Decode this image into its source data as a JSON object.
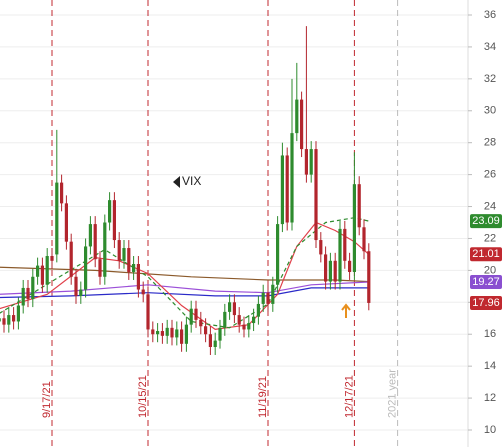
{
  "chart_data": {
    "type": "candlestick",
    "label": "VIX",
    "categories": [
      null,
      null,
      null,
      null,
      null,
      null,
      null,
      null,
      null,
      null,
      null,
      "9/17/21",
      null,
      null,
      null,
      null,
      null,
      null,
      null,
      null,
      null,
      null,
      null,
      null,
      null,
      null,
      null,
      null,
      null,
      null,
      null,
      "10/15/21",
      null,
      null,
      null,
      null,
      null,
      null,
      null,
      null,
      null,
      null,
      null,
      null,
      null,
      null,
      null,
      null,
      null,
      null,
      null,
      null,
      null,
      null,
      null,
      null,
      "11/19/21",
      null,
      null,
      null,
      null,
      null,
      null,
      null,
      null,
      null,
      null,
      null,
      null,
      null,
      null,
      null,
      null,
      null,
      "12/17/21",
      null,
      null,
      null,
      null,
      null,
      null,
      null,
      null,
      "2021 year"
    ],
    "open": [
      16.8,
      17.0,
      16.6,
      17.2,
      16.8,
      17.8,
      18.9,
      18.2,
      19.6,
      20.3,
      19.1,
      20.9,
      21.0,
      25.5,
      24.2,
      21.8,
      19.6,
      18.4,
      18.8,
      21.5,
      22.9,
      20.7,
      19.6,
      23.0,
      24.4,
      21.9,
      20.6,
      21.4,
      19.9,
      20.4,
      18.8,
      18.5,
      16.3,
      16.0,
      16.2,
      15.9,
      16.4,
      15.8,
      16.3,
      15.4,
      16.6,
      17.6,
      16.9,
      16.5,
      16.0,
      15.2,
      15.6,
      16.4,
      17.4,
      18.0,
      17.2,
      16.6,
      16.3,
      16.7,
      17.1,
      17.9,
      18.6,
      17.9,
      19.1,
      22.9,
      27.2,
      23.0,
      28.6,
      30.7,
      27.6,
      26.0,
      27.6,
      21.9,
      21.0,
      19.3,
      20.6,
      19.3,
      22.6,
      20.6,
      19.9,
      25.4,
      22.7,
      21.2,
      null,
      null,
      null,
      null,
      null,
      null
    ],
    "high": [
      17.5,
      17.5,
      17.7,
      17.7,
      18.3,
      19.4,
      19.4,
      20.1,
      20.8,
      20.8,
      21.4,
      21.4,
      28.8,
      26.0,
      24.7,
      22.3,
      20.1,
      19.3,
      22.0,
      23.4,
      23.4,
      21.2,
      23.5,
      24.9,
      24.9,
      22.4,
      21.9,
      21.9,
      20.9,
      20.9,
      19.3,
      19.0,
      16.8,
      16.7,
      16.7,
      16.9,
      16.9,
      16.8,
      16.8,
      17.1,
      18.1,
      18.1,
      17.4,
      17.0,
      16.5,
      16.1,
      16.9,
      17.9,
      18.5,
      18.5,
      17.7,
      17.1,
      17.2,
      17.6,
      18.4,
      19.1,
      19.1,
      19.6,
      23.4,
      28.0,
      27.7,
      32.0,
      33.0,
      31.2,
      35.3,
      28.1,
      28.1,
      22.4,
      21.5,
      21.1,
      21.1,
      23.1,
      23.1,
      21.1,
      27.4,
      25.9,
      23.2,
      21.7,
      null,
      null,
      null,
      null,
      null,
      null
    ],
    "low": [
      16.3,
      16.1,
      16.1,
      16.3,
      16.3,
      17.3,
      17.7,
      17.7,
      19.1,
      18.6,
      18.6,
      20.1,
      20.5,
      23.7,
      21.3,
      19.1,
      17.9,
      17.9,
      18.3,
      21.0,
      20.2,
      19.1,
      19.1,
      22.5,
      21.4,
      20.1,
      20.1,
      19.4,
      19.4,
      18.3,
      18.0,
      15.8,
      15.5,
      15.5,
      15.4,
      15.4,
      15.3,
      15.3,
      14.9,
      14.9,
      16.1,
      16.4,
      16.0,
      15.5,
      14.7,
      14.7,
      15.1,
      15.9,
      16.9,
      16.7,
      16.1,
      15.8,
      15.8,
      16.2,
      16.6,
      17.4,
      17.4,
      17.4,
      18.6,
      22.4,
      22.5,
      22.5,
      28.1,
      27.1,
      25.5,
      25.5,
      21.4,
      20.5,
      18.8,
      18.8,
      18.8,
      18.8,
      20.1,
      19.4,
      19.4,
      22.2,
      20.7,
      17.5,
      null,
      null,
      null,
      null,
      null,
      null
    ],
    "close": [
      17.0,
      16.6,
      17.2,
      16.8,
      17.8,
      18.9,
      18.2,
      19.6,
      20.3,
      19.1,
      20.9,
      20.6,
      25.5,
      24.2,
      21.8,
      19.6,
      18.4,
      18.8,
      21.5,
      22.9,
      20.7,
      19.6,
      23.0,
      24.4,
      21.9,
      20.6,
      21.4,
      19.9,
      20.4,
      18.8,
      18.5,
      16.3,
      16.0,
      16.2,
      15.9,
      16.4,
      15.8,
      16.3,
      15.4,
      16.6,
      17.6,
      16.9,
      16.5,
      16.0,
      15.2,
      15.6,
      16.4,
      17.4,
      18.0,
      17.2,
      16.6,
      16.3,
      16.7,
      17.1,
      17.9,
      18.6,
      17.9,
      19.1,
      22.9,
      27.2,
      23.0,
      28.6,
      30.7,
      27.6,
      26.0,
      27.6,
      21.9,
      21.0,
      19.3,
      20.6,
      19.3,
      22.6,
      20.6,
      19.9,
      25.4,
      22.7,
      21.2,
      17.96,
      null,
      null,
      null,
      null,
      null,
      null
    ],
    "up_color": "#2e8b2e",
    "down_color": "#b2252d",
    "overlays": [
      {
        "color": "#8b5a2b",
        "dash": false,
        "x": [
          0,
          20,
          40,
          56,
          70,
          77
        ],
        "values": [
          20.2,
          20.0,
          19.6,
          19.4,
          19.4,
          19.3
        ]
      },
      {
        "color": "#2a2ac8",
        "dash": false,
        "x": [
          0,
          15,
          31,
          45,
          56,
          65,
          77
        ],
        "values": [
          18.3,
          18.4,
          18.6,
          18.4,
          18.4,
          18.9,
          18.9
        ]
      },
      {
        "color": "#9b4fd8",
        "dash": false,
        "x": [
          0,
          15,
          31,
          45,
          56,
          65,
          77
        ],
        "values": [
          18.5,
          18.7,
          19.1,
          18.7,
          18.6,
          19.1,
          19.27
        ]
      },
      {
        "color": "#e0404a",
        "dash": false,
        "x": [
          0,
          10,
          20,
          25,
          31,
          38,
          45,
          52,
          58,
          62,
          66,
          70,
          74,
          77
        ],
        "values": [
          17.6,
          18.5,
          20.8,
          20.6,
          19.8,
          17.8,
          16.3,
          16.6,
          18.5,
          21.5,
          23.0,
          22.5,
          21.8,
          21.01
        ]
      },
      {
        "color": "#2e8b2e",
        "dash": true,
        "x": [
          0,
          12,
          22,
          31,
          40,
          48,
          56,
          62,
          68,
          74,
          77
        ],
        "values": [
          17.3,
          19.5,
          21.3,
          19.6,
          16.8,
          16.4,
          17.9,
          21.5,
          23.0,
          23.3,
          23.09
        ]
      }
    ],
    "price_labels": [
      {
        "value": 23.09,
        "color": "#2e8b2e"
      },
      {
        "value": 21.01,
        "color": "#c0282f"
      },
      {
        "value": 19.27,
        "color": "#8a4fd0"
      },
      {
        "value": 17.96,
        "color": "#c0282f"
      }
    ],
    "ylim": [
      10,
      36
    ],
    "yticks": [
      10,
      12,
      14,
      16,
      18,
      20,
      22,
      24,
      26,
      28,
      30,
      32,
      34,
      36
    ],
    "grid": true
  }
}
